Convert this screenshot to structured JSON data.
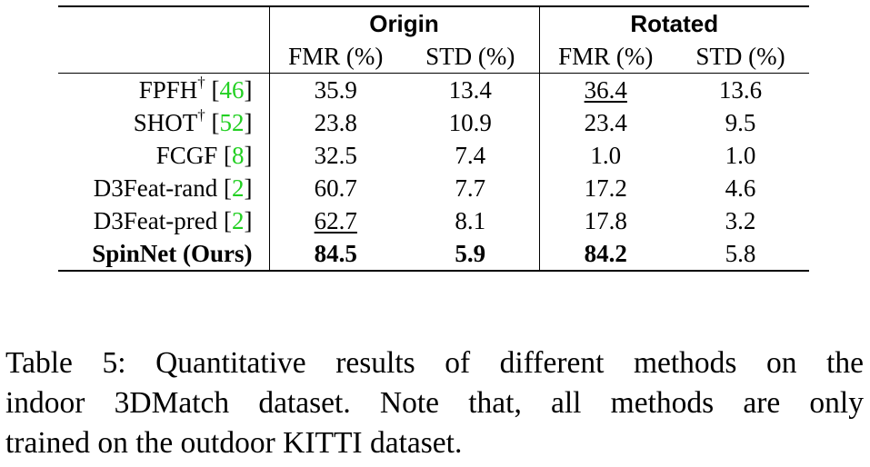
{
  "table": {
    "group_headers": [
      "Origin",
      "Rotated"
    ],
    "metric_headers": [
      "FMR (%)",
      "STD (%)",
      "FMR (%)",
      "STD (%)"
    ],
    "rows": [
      {
        "method": "FPFH",
        "sup": "†",
        "cite": "46",
        "values": [
          "35.9",
          "13.4",
          "36.4",
          "13.6"
        ],
        "underline": [
          false,
          false,
          true,
          false
        ],
        "bold": [
          false,
          false,
          false,
          false
        ]
      },
      {
        "method": "SHOT",
        "sup": "†",
        "cite": "52",
        "values": [
          "23.8",
          "10.9",
          "23.4",
          "9.5"
        ],
        "underline": [
          false,
          false,
          false,
          false
        ],
        "bold": [
          false,
          false,
          false,
          false
        ]
      },
      {
        "method": "FCGF",
        "sup": "",
        "cite": "8",
        "values": [
          "32.5",
          "7.4",
          "1.0",
          "1.0"
        ],
        "underline": [
          false,
          false,
          false,
          false
        ],
        "bold": [
          false,
          false,
          false,
          false
        ]
      },
      {
        "method": "D3Feat-rand",
        "sup": "",
        "cite": "2",
        "values": [
          "60.7",
          "7.7",
          "17.2",
          "4.6"
        ],
        "underline": [
          false,
          false,
          false,
          false
        ],
        "bold": [
          false,
          false,
          false,
          false
        ]
      },
      {
        "method": "D3Feat-pred",
        "sup": "",
        "cite": "2",
        "values": [
          "62.7",
          "8.1",
          "17.8",
          "3.2"
        ],
        "underline": [
          true,
          false,
          false,
          false
        ],
        "bold": [
          false,
          false,
          false,
          false
        ]
      },
      {
        "method": "SpinNet (Ours)",
        "sup": "",
        "cite": "",
        "values": [
          "84.5",
          "5.9",
          "84.2",
          "5.8"
        ],
        "underline": [
          false,
          false,
          false,
          false
        ],
        "bold": [
          true,
          true,
          true,
          false
        ]
      }
    ],
    "cite_color": "#22d022"
  },
  "caption": {
    "lines": [
      "Table 5:  Quantitative results of different methods on the",
      "indoor 3DMatch dataset.  Note that, all methods are only",
      "trained on the outdoor KITTI dataset."
    ]
  }
}
